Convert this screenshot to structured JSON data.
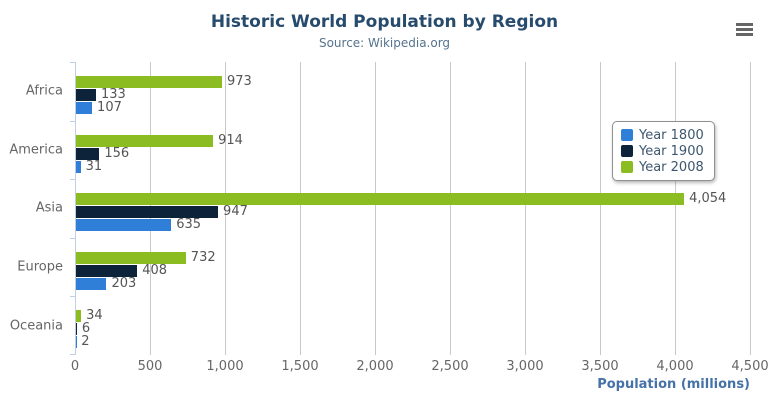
{
  "chart_data": {
    "type": "bar",
    "orientation": "horizontal",
    "title": "Historic World Population by Region",
    "subtitle": "Source: Wikipedia.org",
    "categories": [
      "Africa",
      "America",
      "Asia",
      "Europe",
      "Oceania"
    ],
    "series": [
      {
        "name": "Year 1800",
        "color": "#2f7ed8",
        "values": [
          107,
          31,
          635,
          203,
          2
        ]
      },
      {
        "name": "Year 1900",
        "color": "#0d233a",
        "values": [
          133,
          156,
          947,
          408,
          6
        ]
      },
      {
        "name": "Year 2008",
        "color": "#8bbc21",
        "values": [
          973,
          914,
          4054,
          732,
          34
        ]
      }
    ],
    "series_display_order_top_to_bottom": [
      "Year 2008",
      "Year 1900",
      "Year 1800"
    ],
    "xlabel": "Population (millions)",
    "xlim": [
      0,
      4500
    ],
    "x_tick_interval": 500,
    "x_tick_labels": [
      "0",
      "500",
      "1,000",
      "1,500",
      "2,000",
      "2,500",
      "3,000",
      "3,500",
      "4,000",
      "4,500"
    ],
    "grid": true,
    "legend_position": "right-top",
    "data_labels": "outside-end"
  },
  "toolbar": {
    "context_menu_icon": "hamburger-icon"
  },
  "colors": {
    "title": "#274b6d",
    "subtitle": "#55738c",
    "axis_title": "#4572A7",
    "tick_label": "#666666",
    "data_label": "#555555",
    "grid_line": "#C9C9C9",
    "axis_line": "#C0D0E0",
    "legend_border": "#909090",
    "menu_icon": "#666666"
  }
}
